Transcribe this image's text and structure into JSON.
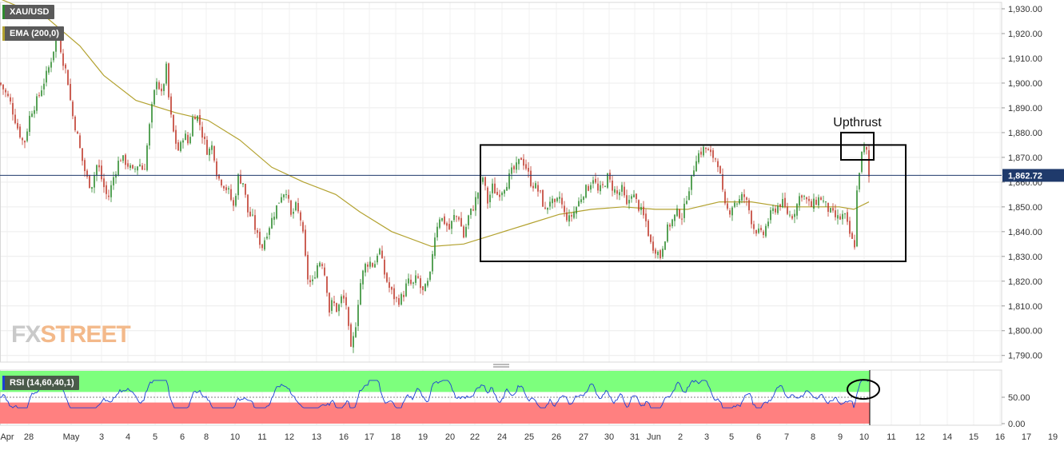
{
  "legends": {
    "symbol": "XAU/USD",
    "ema": "EMA (200,0)",
    "rsi": "RSI (14,60,40,1)"
  },
  "watermark": {
    "part1": "FX",
    "part2": "STREET"
  },
  "colors": {
    "up": "#2e8b2e",
    "down": "#c0392b",
    "ema": "#b3a230",
    "rsi_line": "#1a3fd6",
    "rsi_upper_zone": "#7dff7d",
    "rsi_lower_zone": "#ff8080",
    "price_line": "#1f3a6b",
    "box": "#000000"
  },
  "chart_data": [
    {
      "type": "candlestick",
      "title": "XAU/USD",
      "indicator": "EMA (200,0)",
      "x_axis_labels": [
        "Apr",
        "28",
        "May",
        "3",
        "4",
        "5",
        "6",
        "8",
        "10",
        "11",
        "12",
        "13",
        "16",
        "17",
        "18",
        "19",
        "20",
        "22",
        "24",
        "25",
        "26",
        "27",
        "30",
        "31",
        "Jun",
        "2",
        "3",
        "5",
        "6",
        "7",
        "8",
        "9",
        "10",
        "11",
        "12",
        "14",
        "15",
        "16",
        "17",
        "19"
      ],
      "y_axis_labels": [
        "1,930.00",
        "1,920.00",
        "1,910.00",
        "1,900.00",
        "1,890.00",
        "1,880.00",
        "1,870.00",
        "1,860.00",
        "1,850.00",
        "1,840.00",
        "1,830.00",
        "1,820.00",
        "1,810.00",
        "1,800.00",
        "1,790.00"
      ],
      "ylim": [
        1786,
        1932
      ],
      "current_price": 1862.72,
      "current_price_label": "1,862.72",
      "close_path_keypoints": [
        [
          0,
          1900
        ],
        [
          12,
          1893
        ],
        [
          22,
          1882
        ],
        [
          30,
          1875
        ],
        [
          38,
          1888
        ],
        [
          45,
          1892
        ],
        [
          52,
          1898
        ],
        [
          60,
          1905
        ],
        [
          66,
          1912
        ],
        [
          72,
          1922
        ],
        [
          78,
          1910
        ],
        [
          84,
          1903
        ],
        [
          90,
          1888
        ],
        [
          96,
          1880
        ],
        [
          102,
          1870
        ],
        [
          108,
          1862
        ],
        [
          114,
          1858
        ],
        [
          122,
          1868
        ],
        [
          128,
          1860
        ],
        [
          135,
          1853
        ],
        [
          142,
          1862
        ],
        [
          150,
          1870
        ],
        [
          158,
          1868
        ],
        [
          166,
          1864
        ],
        [
          174,
          1868
        ],
        [
          180,
          1864
        ],
        [
          186,
          1880
        ],
        [
          190,
          1890
        ],
        [
          196,
          1902
        ],
        [
          202,
          1895
        ],
        [
          208,
          1906
        ],
        [
          212,
          1890
        ],
        [
          218,
          1878
        ],
        [
          224,
          1872
        ],
        [
          230,
          1880
        ],
        [
          236,
          1875
        ],
        [
          242,
          1888
        ],
        [
          248,
          1886
        ],
        [
          254,
          1878
        ],
        [
          260,
          1872
        ],
        [
          266,
          1875
        ],
        [
          272,
          1862
        ],
        [
          278,
          1860
        ],
        [
          286,
          1856
        ],
        [
          292,
          1850
        ],
        [
          298,
          1862
        ],
        [
          304,
          1860
        ],
        [
          310,
          1848
        ],
        [
          316,
          1845
        ],
        [
          322,
          1838
        ],
        [
          328,
          1834
        ],
        [
          334,
          1840
        ],
        [
          340,
          1845
        ],
        [
          346,
          1850
        ],
        [
          352,
          1855
        ],
        [
          358,
          1857
        ],
        [
          364,
          1846
        ],
        [
          370,
          1850
        ],
        [
          376,
          1845
        ],
        [
          380,
          1836
        ],
        [
          384,
          1822
        ],
        [
          390,
          1818
        ],
        [
          396,
          1826
        ],
        [
          402,
          1829
        ],
        [
          408,
          1820
        ],
        [
          412,
          1808
        ],
        [
          416,
          1812
        ],
        [
          422,
          1808
        ],
        [
          428,
          1814
        ],
        [
          434,
          1810
        ],
        [
          438,
          1790
        ],
        [
          444,
          1800
        ],
        [
          450,
          1818
        ],
        [
          456,
          1826
        ],
        [
          462,
          1828
        ],
        [
          468,
          1826
        ],
        [
          474,
          1834
        ],
        [
          480,
          1824
        ],
        [
          486,
          1818
        ],
        [
          492,
          1814
        ],
        [
          498,
          1812
        ],
        [
          504,
          1814
        ],
        [
          510,
          1820
        ],
        [
          516,
          1818
        ],
        [
          522,
          1822
        ],
        [
          528,
          1815
        ],
        [
          534,
          1818
        ],
        [
          538,
          1822
        ],
        [
          542,
          1835
        ],
        [
          546,
          1842
        ],
        [
          550,
          1846
        ],
        [
          556,
          1844
        ],
        [
          562,
          1841
        ],
        [
          568,
          1846
        ],
        [
          574,
          1846
        ],
        [
          580,
          1838
        ],
        [
          586,
          1846
        ],
        [
          592,
          1850
        ],
        [
          598,
          1856
        ],
        [
          604,
          1862
        ],
        [
          610,
          1852
        ],
        [
          616,
          1858
        ],
        [
          622,
          1855
        ],
        [
          628,
          1857
        ],
        [
          634,
          1860
        ],
        [
          640,
          1864
        ],
        [
          646,
          1866
        ],
        [
          652,
          1870
        ],
        [
          658,
          1866
        ],
        [
          664,
          1860
        ],
        [
          670,
          1858
        ],
        [
          676,
          1855
        ],
        [
          682,
          1848
        ],
        [
          688,
          1853
        ],
        [
          694,
          1850
        ],
        [
          700,
          1854
        ],
        [
          706,
          1847
        ],
        [
          712,
          1845
        ],
        [
          718,
          1848
        ],
        [
          724,
          1852
        ],
        [
          730,
          1856
        ],
        [
          736,
          1858
        ],
        [
          742,
          1862
        ],
        [
          748,
          1856
        ],
        [
          754,
          1858
        ],
        [
          760,
          1862
        ],
        [
          766,
          1858
        ],
        [
          772,
          1855
        ],
        [
          778,
          1857
        ],
        [
          784,
          1850
        ],
        [
          790,
          1856
        ],
        [
          796,
          1852
        ],
        [
          802,
          1848
        ],
        [
          808,
          1844
        ],
        [
          814,
          1835
        ],
        [
          820,
          1833
        ],
        [
          826,
          1830
        ],
        [
          830,
          1836
        ],
        [
          836,
          1842
        ],
        [
          842,
          1845
        ],
        [
          848,
          1848
        ],
        [
          854,
          1846
        ],
        [
          860,
          1856
        ],
        [
          866,
          1862
        ],
        [
          870,
          1870
        ],
        [
          876,
          1872
        ],
        [
          882,
          1874
        ],
        [
          888,
          1871
        ],
        [
          894,
          1870
        ],
        [
          898,
          1868
        ],
        [
          902,
          1860
        ],
        [
          906,
          1850
        ],
        [
          912,
          1848
        ],
        [
          918,
          1852
        ],
        [
          924,
          1852
        ],
        [
          930,
          1855
        ],
        [
          936,
          1850
        ],
        [
          942,
          1842
        ],
        [
          948,
          1840
        ],
        [
          954,
          1838
        ],
        [
          960,
          1844
        ],
        [
          966,
          1848
        ],
        [
          972,
          1850
        ],
        [
          978,
          1852
        ],
        [
          984,
          1848
        ],
        [
          990,
          1846
        ],
        [
          996,
          1850
        ],
        [
          1002,
          1856
        ],
        [
          1008,
          1853
        ],
        [
          1014,
          1850
        ],
        [
          1020,
          1852
        ],
        [
          1026,
          1854
        ],
        [
          1032,
          1851
        ],
        [
          1038,
          1848
        ],
        [
          1044,
          1846
        ],
        [
          1050,
          1845
        ],
        [
          1056,
          1847
        ],
        [
          1062,
          1840
        ],
        [
          1066,
          1836
        ],
        [
          1068,
          1828
        ],
        [
          1072,
          1856
        ],
        [
          1076,
          1868
        ],
        [
          1080,
          1874
        ],
        [
          1084,
          1872
        ],
        [
          1087,
          1862
        ]
      ],
      "ema_keypoints": [
        [
          0,
          1934
        ],
        [
          60,
          1926
        ],
        [
          100,
          1915
        ],
        [
          130,
          1903
        ],
        [
          170,
          1893
        ],
        [
          220,
          1888
        ],
        [
          260,
          1885
        ],
        [
          300,
          1877
        ],
        [
          340,
          1866
        ],
        [
          380,
          1860
        ],
        [
          420,
          1855
        ],
        [
          450,
          1848
        ],
        [
          490,
          1840
        ],
        [
          540,
          1834
        ],
        [
          580,
          1835
        ],
        [
          620,
          1839
        ],
        [
          660,
          1843
        ],
        [
          700,
          1847
        ],
        [
          740,
          1849
        ],
        [
          780,
          1850
        ],
        [
          820,
          1849
        ],
        [
          860,
          1849
        ],
        [
          900,
          1852
        ],
        [
          940,
          1852
        ],
        [
          980,
          1850
        ],
        [
          1020,
          1850
        ],
        [
          1050,
          1850
        ],
        [
          1068,
          1849
        ],
        [
          1087,
          1852
        ]
      ],
      "annotations": [
        {
          "text": "Upthrust",
          "type": "rectangle",
          "x0": 1052,
          "x1": 1093,
          "y0": 1869,
          "y1": 1880
        },
        {
          "text": "",
          "type": "rectangle",
          "x0": 601,
          "x1": 1133,
          "y0": 1828,
          "y1": 1875
        }
      ],
      "grid": true
    },
    {
      "type": "line",
      "title": "RSI (14,60,40,1)",
      "y_axis_labels": [
        "50.00",
        "0.00"
      ],
      "ylim": [
        0,
        100
      ],
      "upper_zone": [
        60,
        100
      ],
      "lower_zone": [
        0,
        40
      ],
      "annotations": [
        {
          "text": "",
          "type": "ellipse",
          "x": 1080,
          "y": 65
        }
      ]
    }
  ]
}
